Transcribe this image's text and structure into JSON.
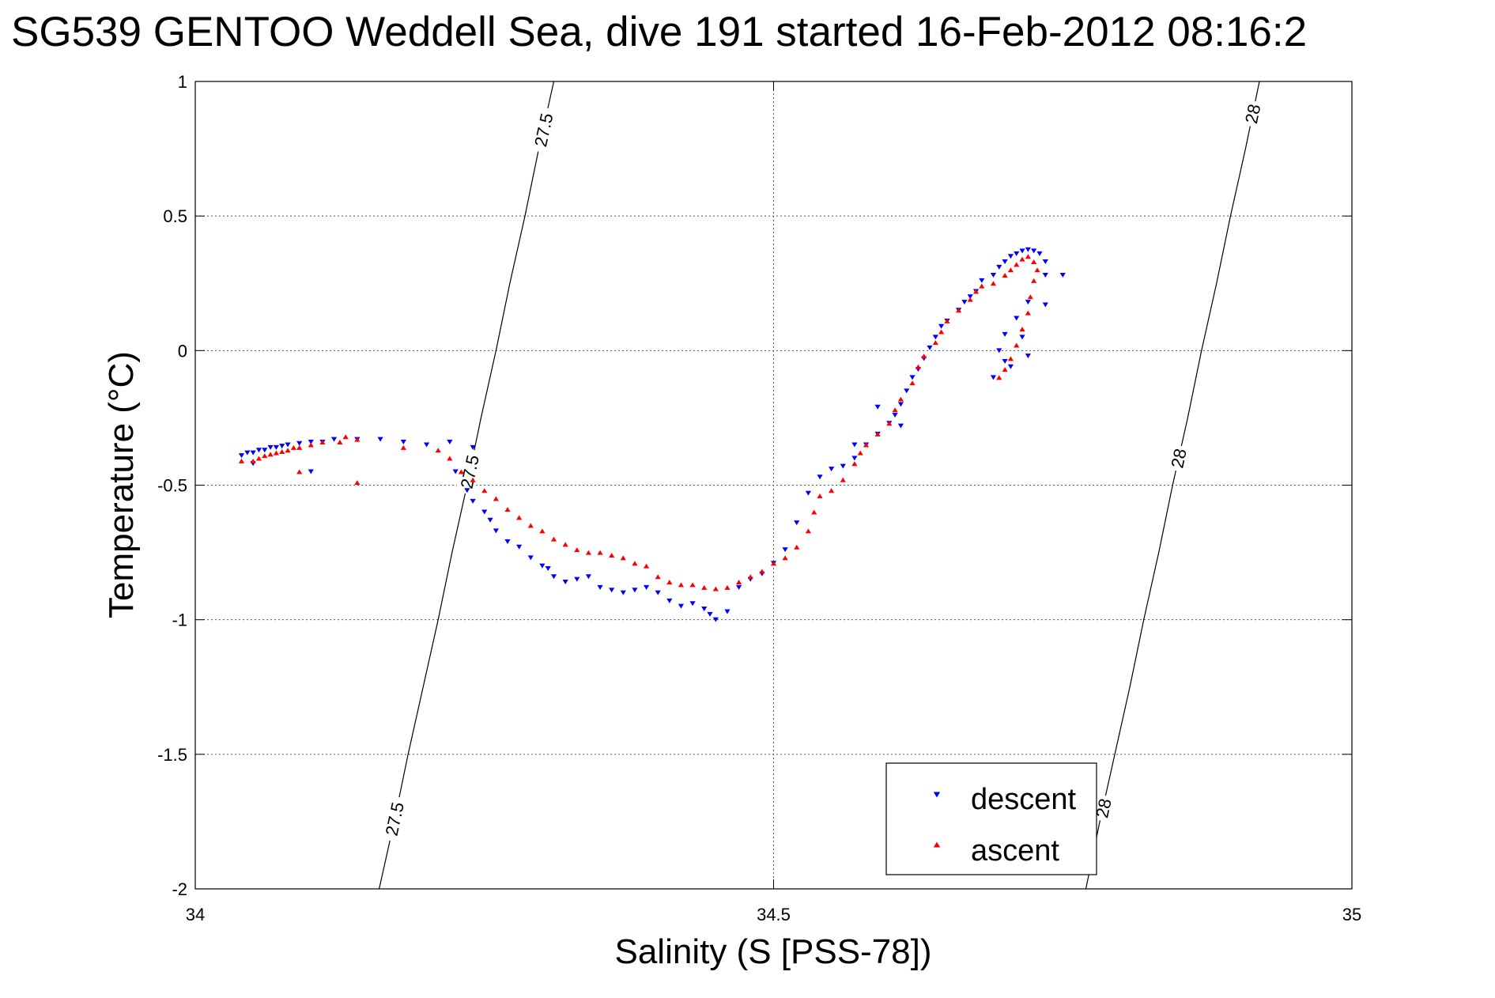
{
  "chart_data": {
    "type": "scatter",
    "title": "SG539 GENTOO Weddell Sea, dive 191 started 16-Feb-2012 08:16:2",
    "xlabel": "Salinity (S [PSS-78])",
    "ylabel": "Temperature (°C)",
    "xlim": [
      34,
      35
    ],
    "ylim": [
      -2,
      1
    ],
    "xticks": [
      34,
      34.5,
      35
    ],
    "xtick_labels": [
      "34",
      "34.5",
      "35"
    ],
    "yticks": [
      -2,
      -1.5,
      -1,
      -0.5,
      0,
      0.5,
      1
    ],
    "ytick_labels": [
      "-2",
      "-1.5",
      "-1",
      "-0.5",
      "0",
      "0.5",
      "1"
    ],
    "grid": true,
    "legend_position": "bottom-right",
    "series": [
      {
        "name": "descent",
        "color": "#0000ff",
        "marker": "triangle-down",
        "points": [
          [
            34.04,
            -0.39
          ],
          [
            34.045,
            -0.38
          ],
          [
            34.05,
            -0.38
          ],
          [
            34.055,
            -0.37
          ],
          [
            34.06,
            -0.37
          ],
          [
            34.065,
            -0.36
          ],
          [
            34.07,
            -0.36
          ],
          [
            34.075,
            -0.355
          ],
          [
            34.08,
            -0.35
          ],
          [
            34.09,
            -0.345
          ],
          [
            34.1,
            -0.34
          ],
          [
            34.11,
            -0.34
          ],
          [
            34.12,
            -0.33
          ],
          [
            34.14,
            -0.33
          ],
          [
            34.16,
            -0.33
          ],
          [
            34.18,
            -0.34
          ],
          [
            34.2,
            -0.35
          ],
          [
            34.22,
            -0.34
          ],
          [
            34.24,
            -0.36
          ],
          [
            34.05,
            -0.42
          ],
          [
            34.1,
            -0.45
          ],
          [
            34.225,
            -0.45
          ],
          [
            34.235,
            -0.52
          ],
          [
            34.24,
            -0.56
          ],
          [
            34.25,
            -0.6
          ],
          [
            34.255,
            -0.63
          ],
          [
            34.26,
            -0.67
          ],
          [
            34.27,
            -0.71
          ],
          [
            34.28,
            -0.73
          ],
          [
            34.29,
            -0.77
          ],
          [
            34.3,
            -0.8
          ],
          [
            34.305,
            -0.81
          ],
          [
            34.31,
            -0.84
          ],
          [
            34.32,
            -0.86
          ],
          [
            34.33,
            -0.85
          ],
          [
            34.34,
            -0.84
          ],
          [
            34.35,
            -0.88
          ],
          [
            34.36,
            -0.89
          ],
          [
            34.37,
            -0.9
          ],
          [
            34.38,
            -0.89
          ],
          [
            34.39,
            -0.88
          ],
          [
            34.4,
            -0.9
          ],
          [
            34.41,
            -0.93
          ],
          [
            34.42,
            -0.95
          ],
          [
            34.43,
            -0.94
          ],
          [
            34.44,
            -0.96
          ],
          [
            34.445,
            -0.98
          ],
          [
            34.45,
            -1.0
          ],
          [
            34.46,
            -0.97
          ],
          [
            34.47,
            -0.88
          ],
          [
            34.48,
            -0.85
          ],
          [
            34.49,
            -0.83
          ],
          [
            34.5,
            -0.79
          ],
          [
            34.51,
            -0.74
          ],
          [
            34.52,
            -0.64
          ],
          [
            34.53,
            -0.53
          ],
          [
            34.54,
            -0.47
          ],
          [
            34.55,
            -0.44
          ],
          [
            34.56,
            -0.43
          ],
          [
            34.57,
            -0.4
          ],
          [
            34.58,
            -0.35
          ],
          [
            34.59,
            -0.31
          ],
          [
            34.6,
            -0.27
          ],
          [
            34.605,
            -0.24
          ],
          [
            34.61,
            -0.2
          ],
          [
            34.615,
            -0.15
          ],
          [
            34.62,
            -0.1
          ],
          [
            34.625,
            -0.07
          ],
          [
            34.63,
            -0.03
          ],
          [
            34.635,
            0.01
          ],
          [
            34.64,
            0.05
          ],
          [
            34.645,
            0.09
          ],
          [
            34.65,
            0.11
          ],
          [
            34.66,
            0.15
          ],
          [
            34.665,
            0.18
          ],
          [
            34.67,
            0.2
          ],
          [
            34.675,
            0.22
          ],
          [
            34.68,
            0.26
          ],
          [
            34.69,
            0.28
          ],
          [
            34.695,
            0.31
          ],
          [
            34.7,
            0.33
          ],
          [
            34.705,
            0.35
          ],
          [
            34.71,
            0.36
          ],
          [
            34.715,
            0.37
          ],
          [
            34.72,
            0.375
          ],
          [
            34.725,
            0.37
          ],
          [
            34.73,
            0.36
          ],
          [
            34.735,
            0.33
          ],
          [
            34.735,
            0.28
          ],
          [
            34.72,
            0.18
          ],
          [
            34.735,
            0.17
          ],
          [
            34.7,
            0.06
          ],
          [
            34.71,
            0.12
          ],
          [
            34.715,
            0.05
          ],
          [
            34.72,
            -0.02
          ],
          [
            34.705,
            -0.06
          ],
          [
            34.69,
            -0.1
          ],
          [
            34.695,
            0.0
          ],
          [
            34.7,
            -0.04
          ],
          [
            34.75,
            0.28
          ],
          [
            34.59,
            -0.21
          ],
          [
            34.61,
            -0.28
          ],
          [
            34.57,
            -0.35
          ]
        ]
      },
      {
        "name": "ascent",
        "color": "#ff0000",
        "marker": "triangle-up",
        "points": [
          [
            34.04,
            -0.41
          ],
          [
            34.05,
            -0.41
          ],
          [
            34.055,
            -0.4
          ],
          [
            34.06,
            -0.39
          ],
          [
            34.065,
            -0.385
          ],
          [
            34.07,
            -0.38
          ],
          [
            34.075,
            -0.375
          ],
          [
            34.08,
            -0.37
          ],
          [
            34.085,
            -0.36
          ],
          [
            34.09,
            -0.36
          ],
          [
            34.1,
            -0.35
          ],
          [
            34.11,
            -0.34
          ],
          [
            34.125,
            -0.34
          ],
          [
            34.13,
            -0.32
          ],
          [
            34.14,
            -0.33
          ],
          [
            34.18,
            -0.36
          ],
          [
            34.09,
            -0.45
          ],
          [
            34.14,
            -0.49
          ],
          [
            34.21,
            -0.37
          ],
          [
            34.22,
            -0.4
          ],
          [
            34.23,
            -0.45
          ],
          [
            34.24,
            -0.48
          ],
          [
            34.25,
            -0.52
          ],
          [
            34.26,
            -0.55
          ],
          [
            34.27,
            -0.59
          ],
          [
            34.28,
            -0.62
          ],
          [
            34.29,
            -0.65
          ],
          [
            34.3,
            -0.67
          ],
          [
            34.31,
            -0.7
          ],
          [
            34.32,
            -0.72
          ],
          [
            34.33,
            -0.74
          ],
          [
            34.34,
            -0.75
          ],
          [
            34.35,
            -0.75
          ],
          [
            34.36,
            -0.76
          ],
          [
            34.37,
            -0.77
          ],
          [
            34.38,
            -0.79
          ],
          [
            34.39,
            -0.8
          ],
          [
            34.4,
            -0.84
          ],
          [
            34.41,
            -0.86
          ],
          [
            34.42,
            -0.87
          ],
          [
            34.43,
            -0.87
          ],
          [
            34.44,
            -0.88
          ],
          [
            34.45,
            -0.885
          ],
          [
            34.46,
            -0.88
          ],
          [
            34.47,
            -0.86
          ],
          [
            34.48,
            -0.84
          ],
          [
            34.49,
            -0.82
          ],
          [
            34.5,
            -0.79
          ],
          [
            34.51,
            -0.77
          ],
          [
            34.52,
            -0.73
          ],
          [
            34.53,
            -0.67
          ],
          [
            34.535,
            -0.6
          ],
          [
            34.54,
            -0.54
          ],
          [
            34.55,
            -0.52
          ],
          [
            34.56,
            -0.48
          ],
          [
            34.57,
            -0.42
          ],
          [
            34.575,
            -0.38
          ],
          [
            34.58,
            -0.35
          ],
          [
            34.59,
            -0.31
          ],
          [
            34.6,
            -0.27
          ],
          [
            34.605,
            -0.22
          ],
          [
            34.61,
            -0.18
          ],
          [
            34.62,
            -0.12
          ],
          [
            34.625,
            -0.06
          ],
          [
            34.63,
            -0.02
          ],
          [
            34.64,
            0.03
          ],
          [
            34.645,
            0.07
          ],
          [
            34.65,
            0.11
          ],
          [
            34.66,
            0.15
          ],
          [
            34.67,
            0.19
          ],
          [
            34.675,
            0.22
          ],
          [
            34.68,
            0.24
          ],
          [
            34.69,
            0.25
          ],
          [
            34.7,
            0.28
          ],
          [
            34.705,
            0.3
          ],
          [
            34.71,
            0.32
          ],
          [
            34.715,
            0.34
          ],
          [
            34.72,
            0.35
          ],
          [
            34.725,
            0.33
          ],
          [
            34.728,
            0.3
          ],
          [
            34.725,
            0.26
          ],
          [
            34.722,
            0.2
          ],
          [
            34.72,
            0.14
          ],
          [
            34.715,
            0.08
          ],
          [
            34.71,
            0.02
          ],
          [
            34.705,
            -0.03
          ],
          [
            34.7,
            -0.07
          ],
          [
            34.695,
            -0.1
          ]
        ]
      }
    ],
    "isopycnals": [
      {
        "sigma": 27.5,
        "labels": [
          "27.5",
          "27.5",
          "27.5"
        ],
        "label_temperatures": [
          0.82,
          -0.45,
          -1.74
        ],
        "curve": [
          [
            34.159,
            -2.0
          ],
          [
            34.172,
            -1.75
          ],
          [
            34.184,
            -1.5
          ],
          [
            34.197,
            -1.25
          ],
          [
            34.21,
            -1.0
          ],
          [
            34.222,
            -0.75
          ],
          [
            34.235,
            -0.5
          ],
          [
            34.247,
            -0.25
          ],
          [
            34.26,
            0.0
          ],
          [
            34.272,
            0.25
          ],
          [
            34.285,
            0.5
          ],
          [
            34.297,
            0.75
          ],
          [
            34.31,
            1.0
          ]
        ]
      },
      {
        "sigma": 28,
        "labels": [
          "28",
          "28",
          "28"
        ],
        "label_temperatures": [
          0.88,
          -0.4,
          -1.7
        ],
        "curve": [
          [
            34.77,
            -2.0
          ],
          [
            34.782,
            -1.75
          ],
          [
            34.795,
            -1.5
          ],
          [
            34.808,
            -1.25
          ],
          [
            34.82,
            -1.0
          ],
          [
            34.833,
            -0.75
          ],
          [
            34.845,
            -0.5
          ],
          [
            34.858,
            -0.25
          ],
          [
            34.87,
            0.0
          ],
          [
            34.883,
            0.25
          ],
          [
            34.895,
            0.5
          ],
          [
            34.908,
            0.75
          ],
          [
            34.92,
            1.0
          ]
        ]
      }
    ]
  }
}
